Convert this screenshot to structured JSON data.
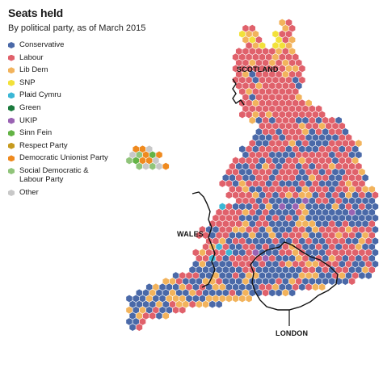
{
  "title": "Seats held",
  "subtitle": "By political party, as of March 2015",
  "parties": [
    {
      "key": "con",
      "name": "Conservative",
      "color": "#4a69a8"
    },
    {
      "key": "lab",
      "name": "Labour",
      "color": "#e0616b"
    },
    {
      "key": "ld",
      "name": "Lib Dem",
      "color": "#f2b35c"
    },
    {
      "key": "snp",
      "name": "SNP",
      "color": "#f2e13a"
    },
    {
      "key": "pc",
      "name": "Plaid Cymru",
      "color": "#3bb7d6"
    },
    {
      "key": "grn",
      "name": "Green",
      "color": "#1a7a3c"
    },
    {
      "key": "ukip",
      "name": "UKIP",
      "color": "#9a63b3"
    },
    {
      "key": "sf",
      "name": "Sinn Fein",
      "color": "#63b345"
    },
    {
      "key": "rsp",
      "name": "Respect Party",
      "color": "#c69a1e"
    },
    {
      "key": "dup",
      "name": "Democratic Unionist Party",
      "color": "#ef8a1f"
    },
    {
      "key": "sdlp",
      "name": "Social Democratic & Labour Party",
      "color": "#90c47a"
    },
    {
      "key": "oth",
      "name": "Other",
      "color": "#c8c8c8"
    }
  ],
  "labels": {
    "scotland": "SCOTLAND",
    "wales": "WALES",
    "london": "LONDON"
  }
}
